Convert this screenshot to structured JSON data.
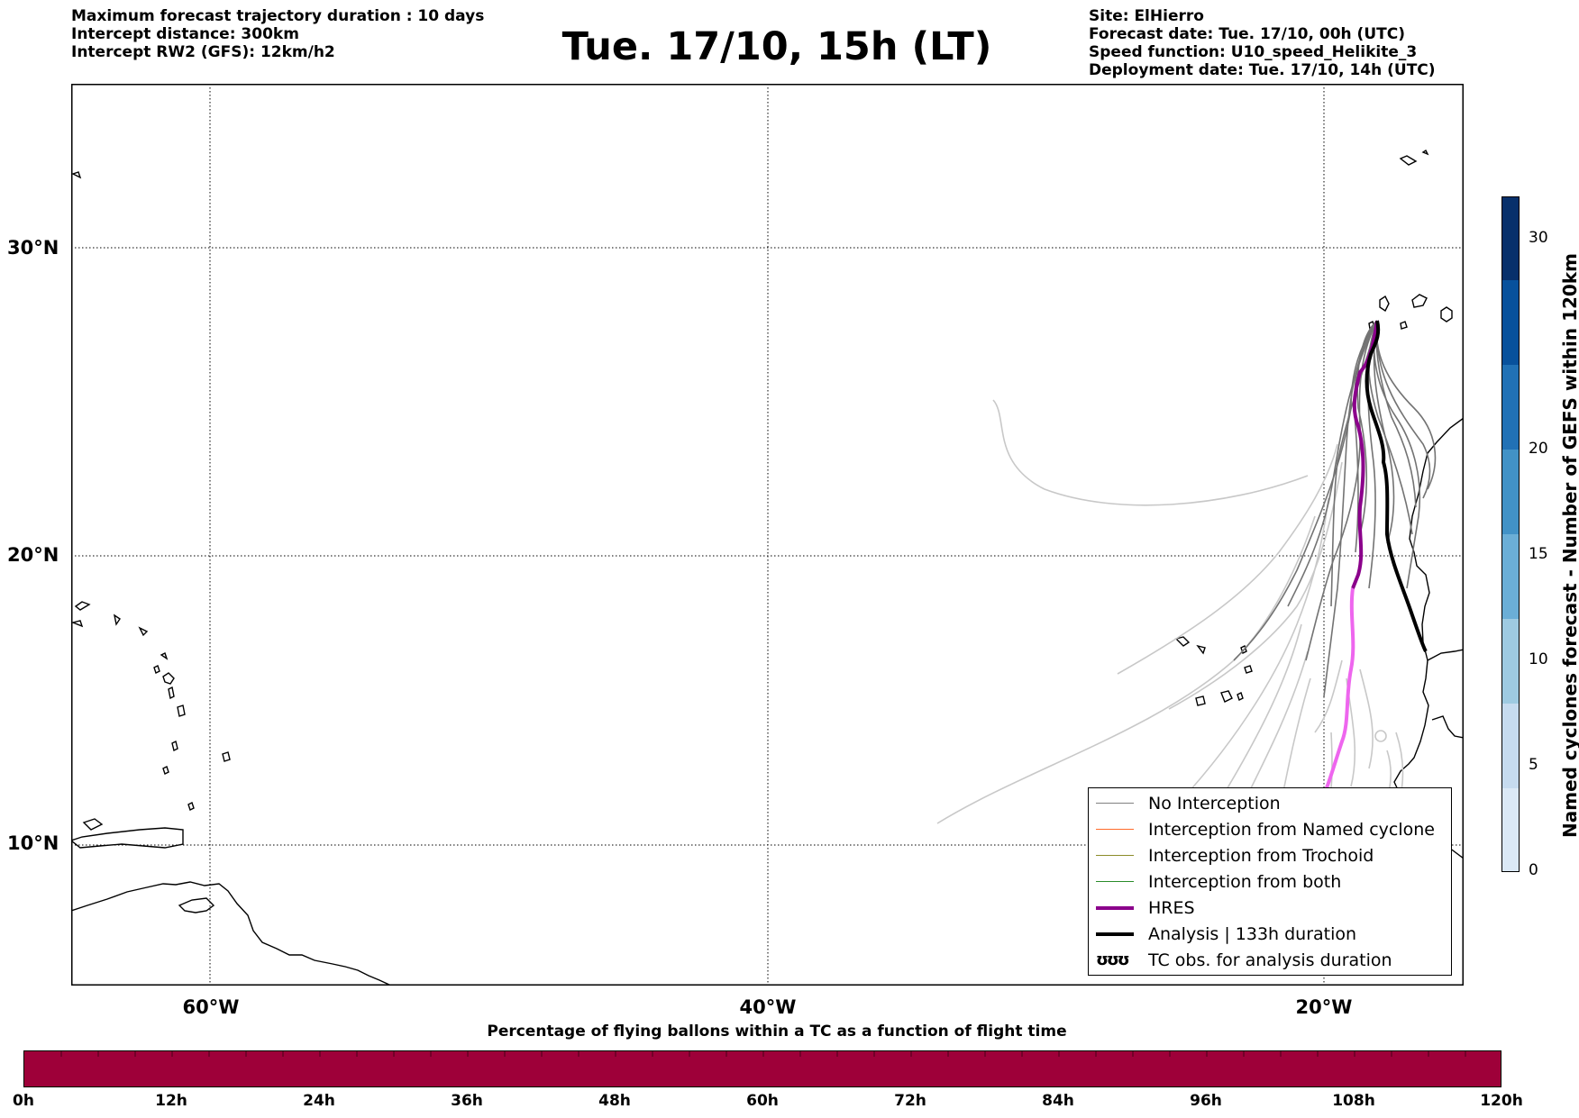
{
  "header": {
    "left_lines": [
      "Maximum forecast trajectory duration : 10 days",
      "Intercept distance: 300km",
      "Intercept RW2 (GFS):  12km/h2"
    ],
    "title": "Tue. 17/10, 15h (LT)",
    "right_lines": [
      "Site: ElHierro",
      "Forecast date: Tue. 17/10, 00h (UTC)",
      "Speed function: U10_speed_Helikite_3",
      "Deployment date: Tue. 17/10, 14h (UTC)"
    ]
  },
  "map": {
    "lat_labels": [
      "30°N",
      "20°N",
      "10°N"
    ],
    "lon_labels": [
      "60°W",
      "40°W",
      "20°W"
    ],
    "lat_gridlines": [
      30,
      20,
      10
    ],
    "lon_gridlines": [
      -60,
      -40,
      -20
    ],
    "extent": {
      "lon_min": -65,
      "lon_max": -15,
      "lat_min": 4.7,
      "lat_max": 35.3
    },
    "colors": {
      "no_interception": "#808080",
      "named_cyclone": "#ff6a2a",
      "trochoid": "#8c8c2a",
      "both": "#2a8c2a",
      "hres": "#8b008b",
      "hres_extension": "#ee66ee",
      "analysis": "#000000",
      "faint_tracks": "#c8c8c8"
    }
  },
  "legend": {
    "items": [
      {
        "label": "No Interception",
        "style": "thin-gray"
      },
      {
        "label": "Interception from Named cyclone",
        "style": "thin-orange"
      },
      {
        "label": "Interception from Trochoid",
        "style": "thin-olive"
      },
      {
        "label": "Interception from both",
        "style": "thin-green"
      },
      {
        "label": "HRES",
        "style": "thick-purple"
      },
      {
        "label": "Analysis | 133h duration",
        "style": "thick-black"
      },
      {
        "label": "TC obs. for analysis duration",
        "style": "tc-symbols",
        "symbols": "ʊʊʊ"
      }
    ]
  },
  "colorbar": {
    "label": "Named cyclones forecast - Number of GEFS within 120km",
    "ticks": [
      "0",
      "5",
      "10",
      "15",
      "20",
      "30"
    ],
    "tick_values": [
      0,
      5,
      10,
      15,
      20,
      30
    ],
    "range": [
      0,
      32
    ],
    "colors": [
      "#dbe9f6",
      "#c6dbef",
      "#9ecae1",
      "#6baed6",
      "#4292c6",
      "#2171b5",
      "#08519c",
      "#08306b"
    ]
  },
  "time_bar": {
    "title": "Percentage of flying ballons within a TC as a function of flight time",
    "labels": [
      "0h",
      "12h",
      "24h",
      "36h",
      "48h",
      "60h",
      "72h",
      "84h",
      "96h",
      "108h",
      "120h"
    ],
    "fill_color": "#9e0039"
  }
}
